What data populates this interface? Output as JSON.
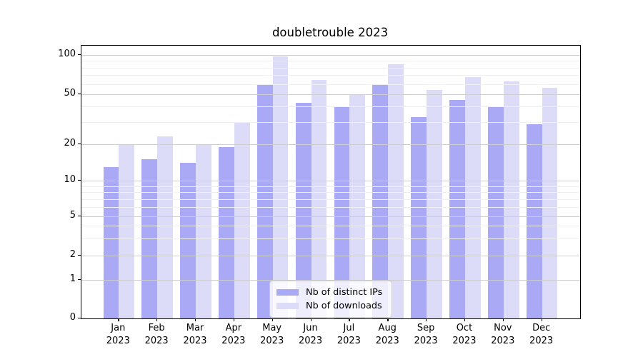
{
  "chart_data": {
    "type": "bar",
    "title": "doubletrouble 2023",
    "xlabel": "",
    "ylabel": "",
    "yscale": "symlog",
    "ylim": [
      0,
      117
    ],
    "grid": true,
    "legend_position": "lower center",
    "categories": [
      "Jan",
      "Feb",
      "Mar",
      "Apr",
      "May",
      "Jun",
      "Jul",
      "Aug",
      "Sep",
      "Oct",
      "Nov",
      "Dec"
    ],
    "year_label": "2023",
    "yticks": [
      0,
      1,
      2,
      5,
      10,
      20,
      50,
      100
    ],
    "yticks_minor": [
      3,
      4,
      6,
      7,
      8,
      9,
      30,
      40,
      60,
      70,
      80,
      90
    ],
    "grid_major_color": "#cecece",
    "grid_minor_color": "#f0f0f0",
    "series": [
      {
        "name": "Nb of distinct IPs",
        "color": "#a9a9f6",
        "values": [
          13,
          15,
          14,
          19,
          60,
          43,
          40,
          59,
          33,
          45,
          40,
          29
        ]
      },
      {
        "name": "Nb of downloads",
        "color": "#dcdcf9",
        "values": [
          20,
          23,
          20,
          30,
          97,
          64,
          50,
          85,
          54,
          68,
          63,
          56
        ]
      }
    ]
  }
}
